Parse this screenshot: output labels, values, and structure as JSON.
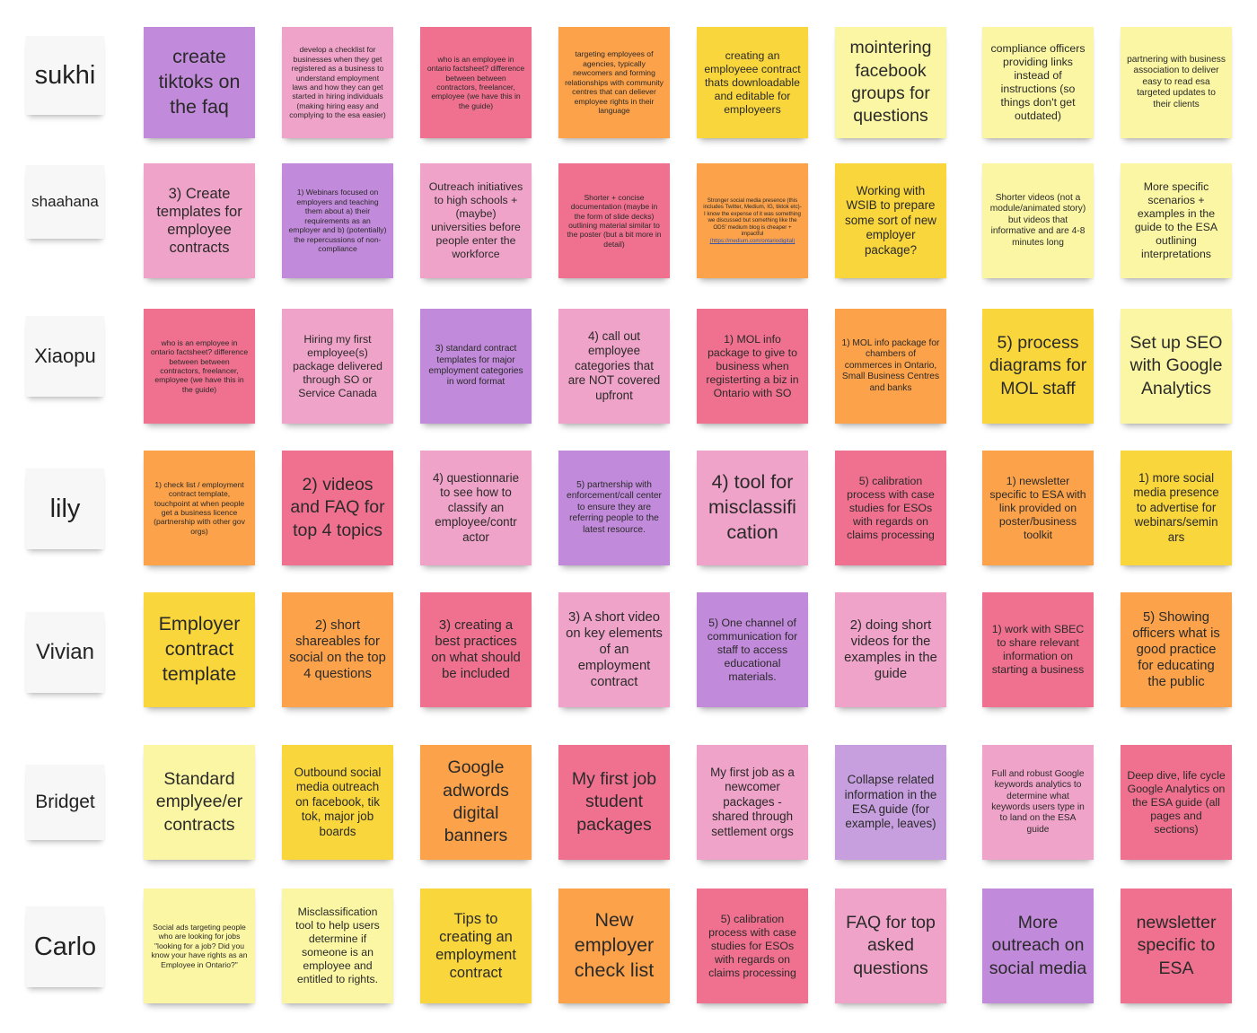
{
  "board": {
    "colors": {
      "purple": "#c28ada",
      "lilac": "#c79fde",
      "pink": "#f0a3c8",
      "rose": "#f0718f",
      "orange": "#fca24a",
      "yellow": "#f9d63c",
      "lightyellow": "#fbf6a3",
      "label": "#f7f7f7"
    },
    "rows": [
      {
        "name": "sukhi",
        "notes": [
          {
            "text": "create tiktoks on the faq",
            "color": "purple",
            "size": "xl"
          },
          {
            "text": "develop a checklist for businesses when they get registered as a business to understand employment laws and how they can get started in hiring individuals (making hiring easy and complying to the esa easier)",
            "color": "pink",
            "size": "xs"
          },
          {
            "text": "who is an employee in ontario factsheet? difference between between contractors, freelancer, employee (we have this in the guide)",
            "color": "rose",
            "size": "xs"
          },
          {
            "text": "targeting employees of agencies, typically newcomers and forming relationships with community centres that can deliever employee rights in their language",
            "color": "orange",
            "size": "xs"
          },
          {
            "text": "creating an employeee contract thats downloadable and editable for employeers",
            "color": "yellow",
            "size": "s"
          },
          {
            "text": "mointering facebook groups for questions",
            "color": "lightyellow",
            "size": "l"
          },
          {
            "text": "compliance officers providing links instead of instructions (so things don't get outdated)",
            "color": "lightyellow",
            "size": "s"
          },
          {
            "text": "partnering with business association to deliver easy to read esa  targeted updates to their clients",
            "color": "lightyellow",
            "size": "xs2"
          }
        ]
      },
      {
        "name": "shaahana",
        "notes": [
          {
            "text": "3) Create templates for employee contracts",
            "color": "pink",
            "size": "m"
          },
          {
            "text": "1) Webinars focused on employers and teaching them about a) their requirements as an employer and b) (potentially) the repercussions of non-compliance",
            "color": "purple",
            "size": "xs"
          },
          {
            "text": "Outreach initiatives to high schools + (maybe) universities before people enter the workforce",
            "color": "pink",
            "size": "s"
          },
          {
            "text": "Shorter + concise documentation (maybe in the form of slide decks) outlining material similar to the poster (but a bit more in detail)",
            "color": "rose",
            "size": "xs"
          },
          {
            "text": "Stronger social media presence (this includes Twitter, Medium, IG, tiktok etc)- I know the expense of it was something we discussed but something like the ODS' medium blog is cheaper + impactful",
            "link": "(https://medium.com/ontariodigital)",
            "color": "orange",
            "size": "xxs"
          },
          {
            "text": "Working with WSIB to prepare some sort of new employer package?",
            "color": "yellow",
            "size": "s2"
          },
          {
            "text": "Shorter videos (not a module/animated story) but videos that informative and are 4-8 minutes long",
            "color": "lightyellow",
            "size": "xs2"
          },
          {
            "text": "More specific scenarios + examples in the guide to the ESA outlining interpretations",
            "color": "lightyellow",
            "size": "s"
          }
        ]
      },
      {
        "name": "Xiaopu",
        "notes": [
          {
            "text": "who is an employee in ontario factsheet? difference between between contractors, freelancer, employee (we have this in the guide)",
            "color": "rose",
            "size": "xs"
          },
          {
            "text": "Hiring my first employee(s) package delivered through SO or Service Canada",
            "color": "pink",
            "size": "s"
          },
          {
            "text": "3) standard contract templates for major employment categories in word format",
            "color": "purple",
            "size": "xs2"
          },
          {
            "text": "4) call out employee categories that are NOT covered upfront",
            "color": "pink",
            "size": "s2"
          },
          {
            "text": "1) MOL info package to give to business when registerting a biz in Ontario with SO",
            "color": "rose",
            "size": "s"
          },
          {
            "text": "1) MOL info package for chambers of commerces in Ontario, Small Business Centres and banks",
            "color": "orange",
            "size": "xs2"
          },
          {
            "text": "5) process diagrams for MOL staff",
            "color": "yellow",
            "size": "l"
          },
          {
            "text": "Set up SEO with Google Analytics",
            "color": "lightyellow",
            "size": "l"
          }
        ]
      },
      {
        "name": "lily",
        "notes": [
          {
            "text": "1) check list / employment contract template, touchpoint at when people get a business licence (partnership with other gov orgs)",
            "color": "orange",
            "size": "xs"
          },
          {
            "text": "2) videos and FAQ for top 4 topics",
            "color": "rose",
            "size": "l"
          },
          {
            "text": "4) questionnarie to see how to classify an employee/contr actor",
            "color": "pink",
            "size": "s2"
          },
          {
            "text": "5) partnership with enforcement/call center to ensure they are referring people to the latest resource.",
            "color": "purple",
            "size": "xs2"
          },
          {
            "text": "4)  tool for misclassifi cation",
            "color": "pink",
            "size": "xl"
          },
          {
            "text": "5) calibration process with case studies for ESOs with regards on claims processing",
            "color": "rose",
            "size": "s"
          },
          {
            "text": "1) newsletter specific to ESA with link provided on poster/business toolkit",
            "color": "orange",
            "size": "s"
          },
          {
            "text": "1) more social media presence to advertise for webinars/semin ars",
            "color": "yellow",
            "size": "s2"
          }
        ]
      },
      {
        "name": "Vivian",
        "notes": [
          {
            "text": "Employer contract template",
            "color": "yellow",
            "size": "xl"
          },
          {
            "text": "2) short shareables for social on the top 4 questions",
            "color": "orange",
            "size": "m2"
          },
          {
            "text": "3) creating a best practices on what should be included",
            "color": "rose",
            "size": "m2"
          },
          {
            "text": "3) A short video on key elements of an employment contract",
            "color": "pink",
            "size": "m2"
          },
          {
            "text": "5) One channel of communication for staff to access educational materials.",
            "color": "purple",
            "size": "s"
          },
          {
            "text": "2) doing short videos for the examples in the guide",
            "color": "pink",
            "size": "m2"
          },
          {
            "text": "1) work with SBEC to share relevant information on starting a business",
            "color": "rose",
            "size": "s"
          },
          {
            "text": "5) Showing officers what is good practice for educating the public",
            "color": "orange",
            "size": "m2"
          }
        ]
      },
      {
        "name": "Bridget",
        "notes": [
          {
            "text": "Standard emplyee/er contracts",
            "color": "lightyellow",
            "size": "l"
          },
          {
            "text": "Outbound social media outreach on facebook, tik tok, major job boards",
            "color": "yellow",
            "size": "s2"
          },
          {
            "text": "Google adwords digital banners",
            "color": "orange",
            "size": "l"
          },
          {
            "text": "My first job student packages",
            "color": "rose",
            "size": "l"
          },
          {
            "text": "My first job as a newcomer packages - shared through settlement orgs",
            "color": "pink",
            "size": "s2"
          },
          {
            "text": "Collapse related information in the ESA guide (for example, leaves)",
            "color": "lilac",
            "size": "s2"
          },
          {
            "text": "Full and robust Google keywords analytics to determine what keywords users type in to land on the ESA guide",
            "color": "pink",
            "size": "xs2"
          },
          {
            "text": "Deep dive, life cycle Google Analytics on the ESA guide (all pages and sections)",
            "color": "rose",
            "size": "s"
          }
        ]
      },
      {
        "name": "Carlo",
        "notes": [
          {
            "text": "Social ads targeting people who are looking for jobs \"looking for a job? Did you know your have rights as an Employee in Ontario?\"",
            "color": "lightyellow",
            "size": "xs"
          },
          {
            "text": "Misclassification tool to help users determine if someone is an employee and entitled to rights.",
            "color": "lightyellow",
            "size": "s"
          },
          {
            "text": "Tips to creating an employment contract",
            "color": "yellow",
            "size": "m"
          },
          {
            "text": "New employer check list",
            "color": "orange",
            "size": "xl"
          },
          {
            "text": "5) calibration process with case studies for ESOs with regards on claims processing",
            "color": "rose",
            "size": "s"
          },
          {
            "text": "FAQ for top asked questions",
            "color": "pink",
            "size": "l"
          },
          {
            "text": "More outreach on social media",
            "color": "purple",
            "size": "l"
          },
          {
            "text": "newsletter specific to ESA",
            "color": "rose",
            "size": "l"
          }
        ]
      }
    ]
  }
}
